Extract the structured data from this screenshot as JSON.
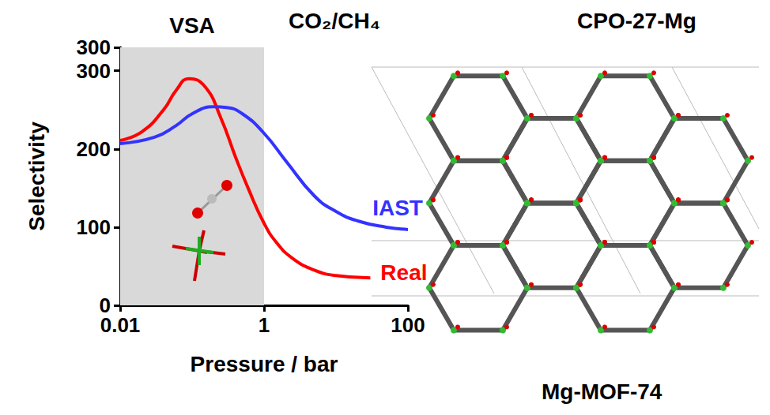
{
  "chart_data": {
    "type": "line",
    "title": "CO₂/CH₄",
    "x_label": "Pressure / bar",
    "y_label": "Selectivity",
    "log": "x",
    "grid": false,
    "xlim": [
      0.01,
      100
    ],
    "xticks": [
      0.01,
      1,
      100
    ],
    "ylim": [
      0,
      330
    ],
    "yticks": [
      0,
      100,
      200,
      300
    ],
    "shaded_region": {
      "label": "VSA",
      "x": [
        0.01,
        1
      ]
    },
    "series": [
      {
        "name": "Real",
        "color": "#ff0000",
        "x": [
          0.01,
          0.02,
          0.04,
          0.06,
          0.09,
          0.15,
          0.25,
          0.4,
          0.6,
          1,
          1.5,
          2.5,
          5,
          10,
          30
        ],
        "values": [
          211,
          222,
          250,
          275,
          290,
          280,
          240,
          190,
          150,
          105,
          80,
          60,
          45,
          38,
          35
        ],
        "label_at": {
          "x": 88,
          "y": 42
        }
      },
      {
        "name": "IAST",
        "color": "#3333ff",
        "x": [
          0.01,
          0.03,
          0.06,
          0.1,
          0.2,
          0.3,
          0.5,
          1,
          2,
          5,
          10,
          20,
          50,
          100
        ],
        "values": [
          207,
          215,
          230,
          245,
          254,
          253,
          245,
          220,
          185,
          140,
          120,
          108,
          100,
          97
        ],
        "label_at": {
          "x": 72,
          "y": 125
        }
      }
    ],
    "structure": {
      "title": "CPO-27-Mg",
      "caption": "Mg-MOF-74"
    }
  }
}
